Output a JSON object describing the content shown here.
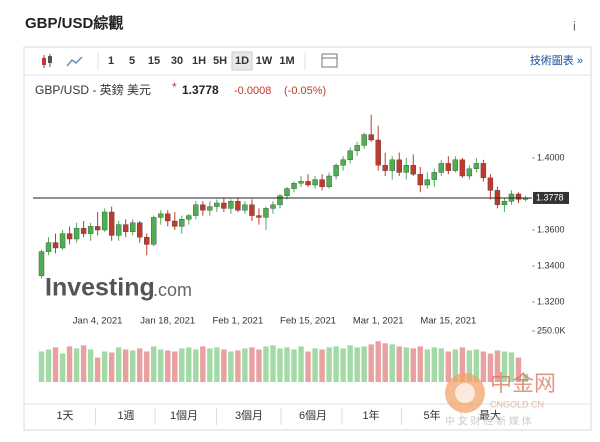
{
  "header": {
    "title": "GBP/USD綜觀",
    "info": "i"
  },
  "toolbar": {
    "intervals": [
      "1",
      "5",
      "15",
      "30",
      "1H",
      "5H",
      "1D",
      "1W",
      "1M"
    ],
    "active_interval": "1D",
    "link": "技術圖表 »"
  },
  "range_buttons": [
    "1天",
    "1週",
    "1個月",
    "3個月",
    "6個月",
    "1年",
    "5年",
    "最大"
  ],
  "watermark": [
    "Investing",
    ".com"
  ],
  "logo": {
    "name": "中金网",
    "url": "CNGOLD.CN",
    "tagline": "中 文 财 经 新 媒 体"
  },
  "chart_data": {
    "type": "candlestick",
    "instrument": "GBP/USD - 英鎊 美元",
    "last": 1.3778,
    "change": -0.0008,
    "change_percent": {
      "value": -0.05,
      "label": "(-0.05%)"
    },
    "up_color": "#4caf50",
    "down_color": "#c0392b",
    "volume_up_color": "#a3d9a5",
    "volume_down_color": "#e8a0a0",
    "categories": [
      null,
      null,
      null,
      null,
      null,
      null,
      null,
      null,
      "Jan 4, 2021",
      null,
      null,
      null,
      null,
      null,
      null,
      null,
      null,
      null,
      "Jan 18, 2021",
      null,
      null,
      null,
      null,
      null,
      null,
      null,
      null,
      null,
      "Feb 1, 2021",
      null,
      null,
      null,
      null,
      null,
      null,
      null,
      null,
      null,
      "Feb 15, 2021",
      null,
      null,
      null,
      null,
      null,
      null,
      null,
      null,
      null,
      "Mar 1, 2021",
      null,
      null,
      null,
      null,
      null,
      null,
      null,
      null,
      null,
      "Mar 15, 2021",
      null,
      null,
      null,
      null,
      null,
      null,
      null,
      null,
      null,
      null,
      null
    ],
    "ohlc": [
      [
        1.3345,
        1.349,
        1.333,
        1.348
      ],
      [
        1.348,
        1.356,
        1.346,
        1.353
      ],
      [
        1.353,
        1.358,
        1.347,
        1.35
      ],
      [
        1.35,
        1.36,
        1.349,
        1.358
      ],
      [
        1.358,
        1.362,
        1.352,
        1.355
      ],
      [
        1.355,
        1.364,
        1.353,
        1.361
      ],
      [
        1.361,
        1.365,
        1.356,
        1.358
      ],
      [
        1.358,
        1.364,
        1.354,
        1.362
      ],
      [
        1.362,
        1.37,
        1.357,
        1.36
      ],
      [
        1.36,
        1.372,
        1.359,
        1.37
      ],
      [
        1.37,
        1.373,
        1.354,
        1.357
      ],
      [
        1.357,
        1.365,
        1.354,
        1.363
      ],
      [
        1.363,
        1.366,
        1.356,
        1.359
      ],
      [
        1.359,
        1.366,
        1.357,
        1.364
      ],
      [
        1.364,
        1.365,
        1.353,
        1.356
      ],
      [
        1.356,
        1.358,
        1.346,
        1.352
      ],
      [
        1.352,
        1.368,
        1.351,
        1.367
      ],
      [
        1.367,
        1.371,
        1.363,
        1.369
      ],
      [
        1.369,
        1.371,
        1.362,
        1.365
      ],
      [
        1.365,
        1.37,
        1.36,
        1.362
      ],
      [
        1.362,
        1.368,
        1.358,
        1.366
      ],
      [
        1.366,
        1.369,
        1.363,
        1.368
      ],
      [
        1.368,
        1.376,
        1.366,
        1.374
      ],
      [
        1.374,
        1.376,
        1.368,
        1.371
      ],
      [
        1.371,
        1.376,
        1.368,
        1.373
      ],
      [
        1.373,
        1.377,
        1.37,
        1.375
      ],
      [
        1.375,
        1.378,
        1.37,
        1.372
      ],
      [
        1.372,
        1.377,
        1.369,
        1.376
      ],
      [
        1.376,
        1.378,
        1.37,
        1.371
      ],
      [
        1.371,
        1.376,
        1.369,
        1.374
      ],
      [
        1.374,
        1.377,
        1.365,
        1.368
      ],
      [
        1.368,
        1.372,
        1.363,
        1.367
      ],
      [
        1.367,
        1.373,
        1.36,
        1.372
      ],
      [
        1.372,
        1.376,
        1.369,
        1.374
      ],
      [
        1.374,
        1.38,
        1.372,
        1.379
      ],
      [
        1.379,
        1.384,
        1.377,
        1.383
      ],
      [
        1.383,
        1.387,
        1.381,
        1.386
      ],
      [
        1.386,
        1.39,
        1.384,
        1.387
      ],
      [
        1.387,
        1.391,
        1.384,
        1.385
      ],
      [
        1.385,
        1.39,
        1.383,
        1.388
      ],
      [
        1.388,
        1.391,
        1.382,
        1.384
      ],
      [
        1.384,
        1.392,
        1.383,
        1.39
      ],
      [
        1.39,
        1.397,
        1.388,
        1.396
      ],
      [
        1.396,
        1.401,
        1.393,
        1.399
      ],
      [
        1.399,
        1.406,
        1.397,
        1.404
      ],
      [
        1.404,
        1.409,
        1.401,
        1.407
      ],
      [
        1.407,
        1.414,
        1.405,
        1.413
      ],
      [
        1.413,
        1.424,
        1.409,
        1.41
      ],
      [
        1.41,
        1.418,
        1.393,
        1.396
      ],
      [
        1.396,
        1.403,
        1.39,
        1.393
      ],
      [
        1.393,
        1.401,
        1.388,
        1.399
      ],
      [
        1.399,
        1.403,
        1.39,
        1.392
      ],
      [
        1.392,
        1.4,
        1.388,
        1.396
      ],
      [
        1.396,
        1.402,
        1.39,
        1.391
      ],
      [
        1.391,
        1.395,
        1.381,
        1.385
      ],
      [
        1.385,
        1.392,
        1.383,
        1.388
      ],
      [
        1.388,
        1.394,
        1.384,
        1.392
      ],
      [
        1.392,
        1.399,
        1.39,
        1.397
      ],
      [
        1.397,
        1.401,
        1.391,
        1.393
      ],
      [
        1.393,
        1.401,
        1.392,
        1.399
      ],
      [
        1.399,
        1.4,
        1.389,
        1.39
      ],
      [
        1.39,
        1.396,
        1.388,
        1.394
      ],
      [
        1.394,
        1.4,
        1.392,
        1.397
      ],
      [
        1.397,
        1.399,
        1.387,
        1.389
      ],
      [
        1.389,
        1.391,
        1.377,
        1.382
      ],
      [
        1.382,
        1.384,
        1.372,
        1.374
      ],
      [
        1.374,
        1.378,
        1.37,
        1.376
      ],
      [
        1.376,
        1.382,
        1.374,
        1.38
      ],
      [
        1.38,
        1.381,
        1.375,
        1.377
      ],
      [
        1.377,
        1.379,
        1.376,
        1.3778
      ]
    ],
    "volume": [
      150000,
      160000,
      170000,
      140000,
      175000,
      165000,
      180000,
      160000,
      120000,
      150000,
      145000,
      170000,
      160000,
      155000,
      165000,
      150000,
      175000,
      160000,
      155000,
      150000,
      165000,
      170000,
      160000,
      175000,
      165000,
      170000,
      160000,
      150000,
      155000,
      165000,
      170000,
      160000,
      175000,
      180000,
      165000,
      170000,
      160000,
      175000,
      150000,
      165000,
      160000,
      170000,
      175000,
      165000,
      180000,
      170000,
      175000,
      185000,
      200000,
      190000,
      185000,
      175000,
      170000,
      165000,
      175000,
      160000,
      170000,
      165000,
      150000,
      160000,
      170000,
      155000,
      160000,
      150000,
      140000,
      155000,
      150000,
      145000,
      120000,
      40000
    ],
    "ylim": [
      1.3,
      1.44
    ],
    "yticks": [
      {
        "value": 1.32,
        "label": "1.3200"
      },
      {
        "value": 1.34,
        "label": "1.3400"
      },
      {
        "value": 1.36,
        "label": "1.3600"
      },
      {
        "value": 1.4,
        "label": "1.4000"
      }
    ],
    "volume_ylim": [
      0,
      280000
    ],
    "volume_ticks": [
      {
        "value": 250000,
        "label": "250.0K"
      }
    ],
    "grid": false
  }
}
